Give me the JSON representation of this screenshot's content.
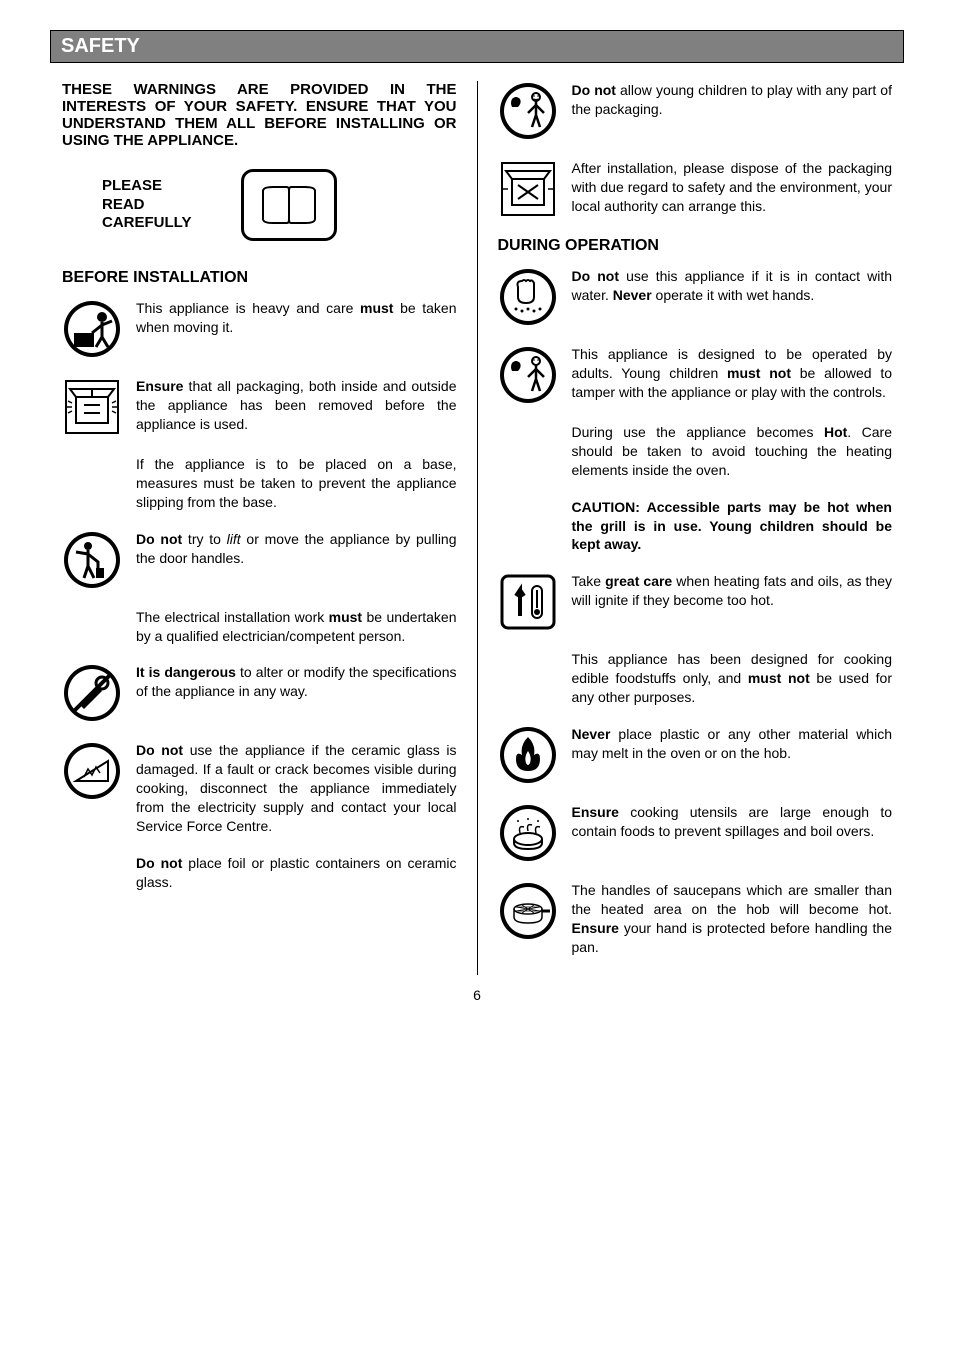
{
  "header": "SAFETY",
  "intro": "THESE WARNINGS ARE PROVIDED IN THE INTERESTS OF YOUR SAFETY. ENSURE THAT YOU UNDERSTAND THEM ALL BEFORE INSTALLING OR USING THE APPLIANCE.",
  "read_label": "PLEASE READ CAREFULLY",
  "before_heading": "BEFORE INSTALLATION",
  "during_heading": "DURING OPERATION",
  "left": {
    "p1": "This appliance is heavy and care <b>must</b> be taken when moving it.",
    "p2": "<b>Ensure</b> that all packaging, both inside and outside the appliance has been removed before the appliance is used.",
    "p3": "If the appliance is to be placed on a base, measures must be taken to prevent the appliance slipping from the base.",
    "p4": "<b>Do not</b> try to <i>lift</i> or move the appliance by pulling the door handles.",
    "p5": "The electrical installation work <b>must</b> be undertaken by a qualified electrician/competent person.",
    "p6": "<b>It is dangerous</b> to alter or modify the specifications of the appliance in any way.",
    "p7": "<b>Do not</b> use the appliance if the ceramic glass is damaged. If a fault or crack becomes visible during cooking, disconnect the appliance immediately from the electricity supply and contact your local Service Force Centre.",
    "p8": "<b>Do not</b> place foil or plastic containers on ceramic glass."
  },
  "right": {
    "p1": "<b>Do not</b> allow young children to play with any part of the packaging.",
    "p2": "After installation, please dispose of the packaging with due regard to safety and the environment, your local authority can arrange this.",
    "p3": "<b>Do not</b> use this appliance if it is in contact with water.  <b>Never</b> operate it with wet hands.",
    "p4": "This appliance is designed to be operated by adults. Young children <b>must not</b> be allowed to tamper with the appliance or play with the controls.",
    "p5": "During use the appliance becomes <b>Hot</b>.  Care should be taken to avoid touching the heating elements inside the oven.",
    "p6": "<b>CAUTION: Accessible parts may be hot when the grill is in use. Young children should be kept away.</b>",
    "p7": "Take <b>great care</b> when heating fats and oils, as they will ignite if they become too hot.",
    "p8": "This appliance has been designed for cooking edible foodstuffs only, and <b>must not</b> be used for any other purposes.",
    "p9": "<b>Never</b> place plastic or any other material which may melt in the oven or on the hob.",
    "p10": "<b>Ensure</b> cooking utensils are large enough to contain foods to prevent spillages and boil overs.",
    "p11": "The handles of saucepans which are smaller than the heated area on the hob will become hot.  <b>Ensure</b> your hand is protected before handling the pan."
  },
  "page_number": "6"
}
